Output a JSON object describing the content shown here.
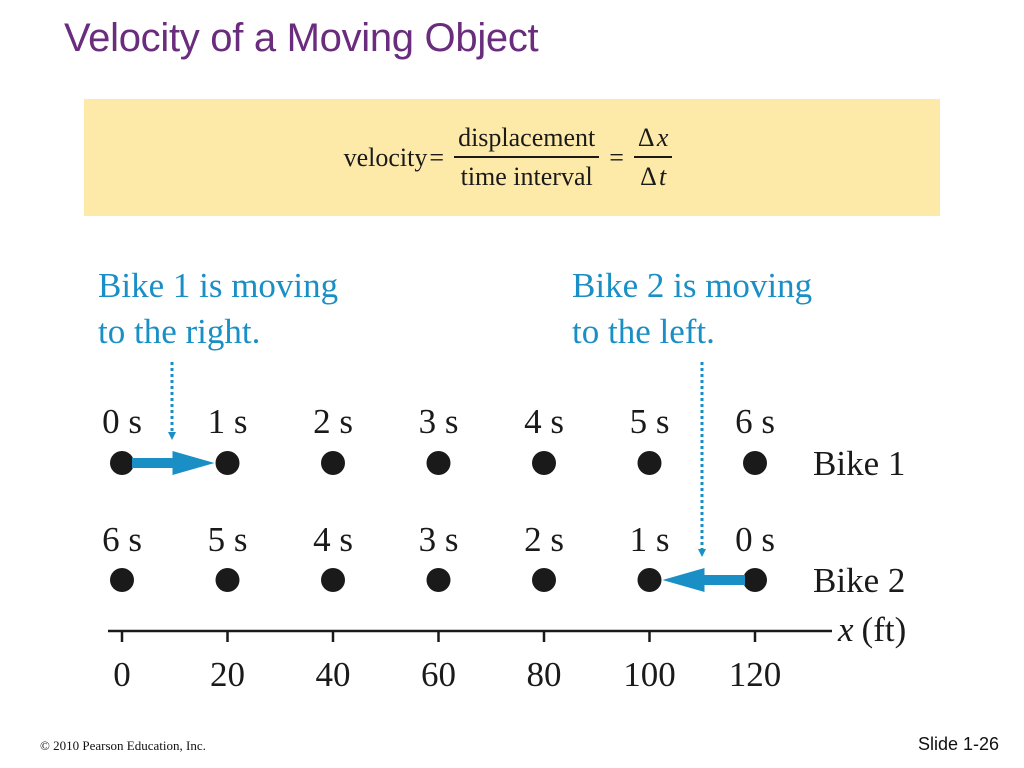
{
  "slide": {
    "title": "Velocity of a Moving Object",
    "footer_copyright": "© 2010 Pearson Education, Inc.",
    "slide_number": "Slide 1-26"
  },
  "formula": {
    "lhs": "velocity",
    "eq": "=",
    "frac1_num": "displacement",
    "frac1_den": "time interval",
    "frac2_num_delta": "Δ",
    "frac2_num_var": "x",
    "frac2_den_delta": "Δ",
    "frac2_den_var": "t"
  },
  "diagram": {
    "callout_bike1": [
      "Bike 1 is moving",
      "to the right."
    ],
    "callout_bike2": [
      "Bike 2 is moving",
      "to the left."
    ],
    "bike1_label": "Bike 1",
    "bike2_label": "Bike 2",
    "bike1_times": [
      "0 s",
      "1 s",
      "2 s",
      "3 s",
      "4 s",
      "5 s",
      "6 s"
    ],
    "bike2_times": [
      "6 s",
      "5 s",
      "4 s",
      "3 s",
      "2 s",
      "1 s",
      "0 s"
    ],
    "axis_positions": [
      0,
      20,
      40,
      60,
      80,
      100,
      120
    ],
    "axis_tick_labels": [
      "0",
      "20",
      "40",
      "60",
      "80",
      "100",
      "120"
    ],
    "axis_label_var": "x",
    "axis_label_unit": "(ft)",
    "bike1_arrow_positions": [
      0,
      20
    ],
    "bike2_arrow_positions": [
      120,
      100
    ],
    "colors": {
      "title": "#6a2c7d",
      "callout": "#1a8fc6",
      "arrow": "#1a8fc6",
      "dot": "#1a1a1a",
      "formula_bg": "#fdeaa9"
    }
  }
}
